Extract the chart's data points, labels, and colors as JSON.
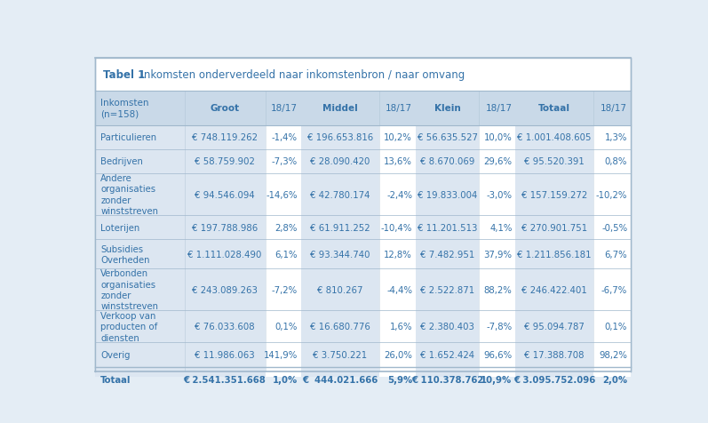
{
  "title_bold": "Tabel 1",
  "title_rest": "  Inkomsten onderverdeeld naar inkomstenbron / naar omvang",
  "header_row": [
    "Inkomsten\n(n=158)",
    "Groot",
    "18/17",
    "Middel",
    "18/17",
    "Klein",
    "18/17",
    "Totaal",
    "18/17"
  ],
  "rows": [
    [
      "Particulieren",
      "€ 748.119.262",
      "-1,4%",
      "€ 196.653.816",
      "10,2%",
      "€ 56.635.527",
      "10,0%",
      "€ 1.001.408.605",
      "1,3%"
    ],
    [
      "Bedrijven",
      "€ 58.759.902",
      "-7,3%",
      "€ 28.090.420",
      "13,6%",
      "€ 8.670.069",
      "29,6%",
      "€ 95.520.391",
      "0,8%"
    ],
    [
      "Andere\norganisaties\nzonder\nwinststreven",
      "€ 94.546.094",
      "-14,6%",
      "€ 42.780.174",
      "-2,4%",
      "€ 19.833.004",
      "-3,0%",
      "€ 157.159.272",
      "-10,2%"
    ],
    [
      "Loterijen",
      "€ 197.788.986",
      "2,8%",
      "€ 61.911.252",
      "-10,4%",
      "€ 11.201.513",
      "4,1%",
      "€ 270.901.751",
      "-0,5%"
    ],
    [
      "Subsidies\nOverheden",
      "€ 1.111.028.490",
      "6,1%",
      "€ 93.344.740",
      "12,8%",
      "€ 7.482.951",
      "37,9%",
      "€ 1.211.856.181",
      "6,7%"
    ],
    [
      "Verbonden\norganisaties\nzonder\nwinststreven",
      "€ 243.089.263",
      "-7,2%",
      "€ 810.267",
      "-4,4%",
      "€ 2.522.871",
      "88,2%",
      "€ 246.422.401",
      "-6,7%"
    ],
    [
      "Verkoop van\nproducten of\ndiensten",
      "€ 76.033.608",
      "0,1%",
      "€ 16.680.776",
      "1,6%",
      "€ 2.380.403",
      "-7,8%",
      "€ 95.094.787",
      "0,1%"
    ],
    [
      "Overig",
      "€ 11.986.063",
      "141,9%",
      "€ 3.750.221",
      "26,0%",
      "€ 1.652.424",
      "96,6%",
      "€ 17.388.708",
      "98,2%"
    ],
    [
      "Totaal",
      "€ 2.541.351.668",
      "1,0%",
      "€  444.021.666",
      "5,9%",
      "€ 110.378.762",
      "10,9%",
      "€ 3.095.752.096",
      "2,0%"
    ]
  ],
  "header_bg": "#c9d9e8",
  "col_shaded_bg": "#dce6f1",
  "col_white_bg": "#ffffff",
  "blue_color": "#3472a8",
  "border_color": "#a0b8cc",
  "title_color": "#3472a8",
  "outer_bg": "#e4edf5",
  "white": "#ffffff"
}
